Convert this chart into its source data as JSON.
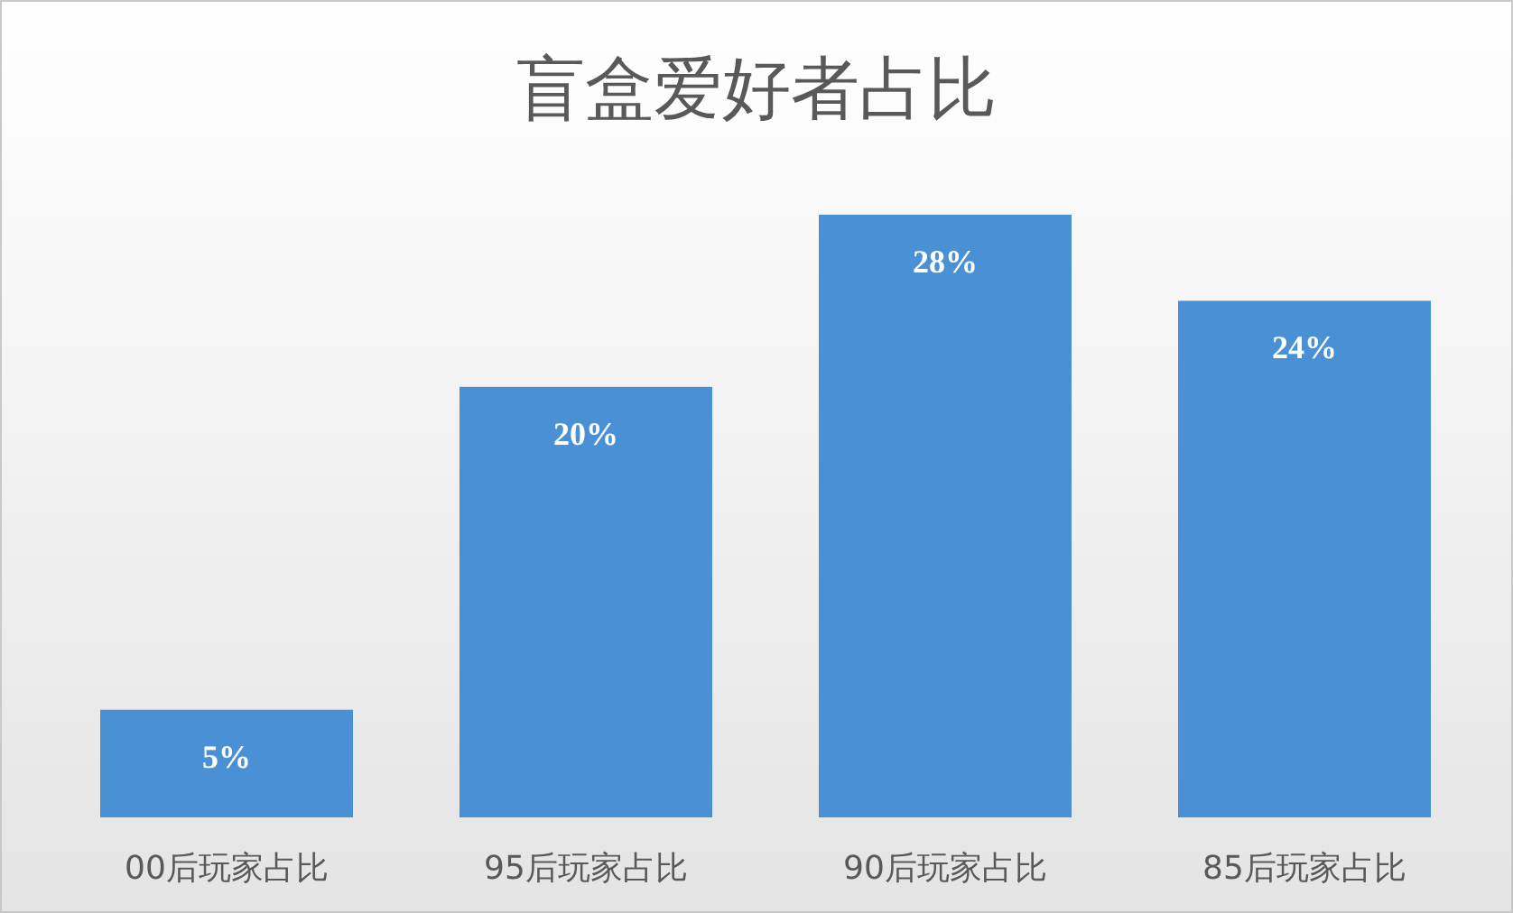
{
  "chart_data": {
    "type": "bar",
    "title": "盲盒爱好者占比",
    "categories": [
      "00后玩家占比",
      "95后玩家占比",
      "90后玩家占比",
      "85后玩家占比"
    ],
    "values": [
      5,
      20,
      28,
      24
    ],
    "value_labels": [
      "5%",
      "20%",
      "28%",
      "24%"
    ],
    "color": "#4a90d4"
  }
}
